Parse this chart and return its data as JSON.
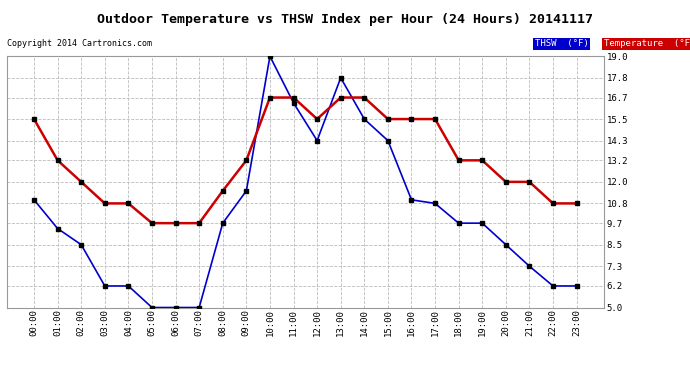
{
  "title": "Outdoor Temperature vs THSW Index per Hour (24 Hours) 20141117",
  "copyright": "Copyright 2014 Cartronics.com",
  "x_labels": [
    "00:00",
    "01:00",
    "02:00",
    "03:00",
    "04:00",
    "05:00",
    "06:00",
    "07:00",
    "08:00",
    "09:00",
    "10:00",
    "11:00",
    "12:00",
    "13:00",
    "14:00",
    "15:00",
    "16:00",
    "17:00",
    "18:00",
    "19:00",
    "20:00",
    "21:00",
    "22:00",
    "23:00"
  ],
  "thsw": [
    11.0,
    9.4,
    8.5,
    6.2,
    6.2,
    5.0,
    5.0,
    5.0,
    9.7,
    11.5,
    19.0,
    16.4,
    14.3,
    17.8,
    15.5,
    14.3,
    11.0,
    10.8,
    9.7,
    9.7,
    8.5,
    7.3,
    6.2,
    6.2
  ],
  "temperature": [
    15.5,
    13.2,
    12.0,
    10.8,
    10.8,
    9.7,
    9.7,
    9.7,
    11.5,
    13.2,
    16.7,
    16.7,
    15.5,
    16.7,
    16.7,
    15.5,
    15.5,
    15.5,
    13.2,
    13.2,
    12.0,
    12.0,
    10.8,
    10.8
  ],
  "thsw_color": "#0000cc",
  "temp_color": "#cc0000",
  "background_color": "#ffffff",
  "grid_color": "#bbbbbb",
  "ylim": [
    5.0,
    19.0
  ],
  "yticks": [
    5.0,
    6.2,
    7.3,
    8.5,
    9.7,
    10.8,
    12.0,
    13.2,
    14.3,
    15.5,
    16.7,
    17.8,
    19.0
  ],
  "legend_thsw_bg": "#0000cc",
  "legend_temp_bg": "#cc0000",
  "legend_thsw_text": "THSW  (°F)",
  "legend_temp_text": "Temperature  (°F)"
}
